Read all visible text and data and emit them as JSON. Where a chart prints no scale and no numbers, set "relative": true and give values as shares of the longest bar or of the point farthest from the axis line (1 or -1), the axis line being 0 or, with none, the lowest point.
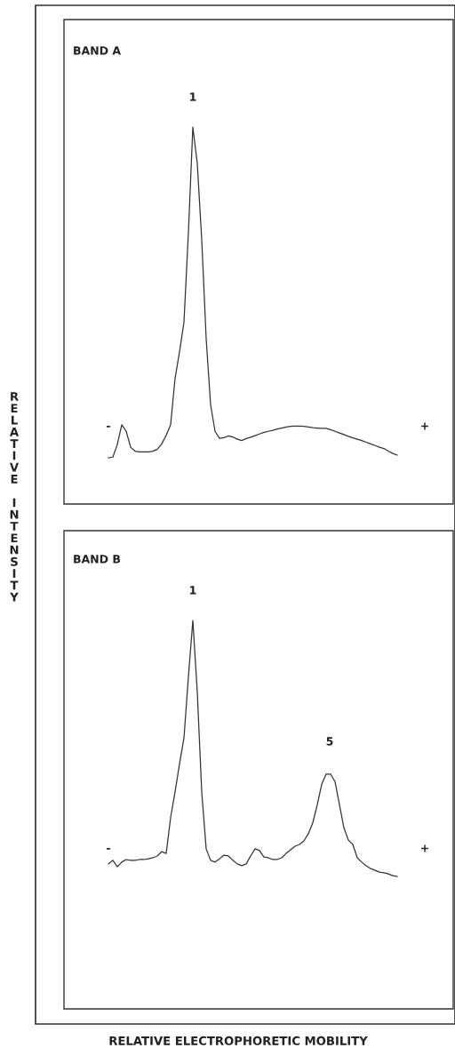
{
  "chart_data": [
    {
      "type": "line",
      "relative": true,
      "ylabel": "RELATIVE INTENSITY",
      "annotations": [
        "BAND A",
        "1",
        "-",
        "+"
      ],
      "categories": [
        null,
        null,
        null,
        null,
        null,
        null,
        null,
        null,
        null,
        null,
        null,
        null,
        null,
        null,
        null,
        null,
        null,
        null,
        null,
        null,
        null,
        null,
        null,
        null,
        null,
        null,
        null,
        null,
        null,
        null,
        null,
        null,
        null,
        null,
        null,
        null,
        null,
        null,
        null,
        null,
        null,
        null,
        null,
        null,
        null,
        null,
        null,
        null,
        null,
        null,
        null,
        null,
        null,
        null,
        null,
        null,
        null,
        null,
        null,
        null,
        null,
        null,
        null,
        null,
        null,
        null
      ],
      "series": [
        {
          "color": "#333333",
          "values": [
            0,
            0.002,
            0.04,
            0.1,
            0.08,
            0.032,
            0.02,
            0.018,
            0.018,
            0.018,
            0.02,
            0.026,
            0.042,
            0.068,
            0.1,
            0.24,
            0.32,
            0.41,
            0.68,
            1,
            0.89,
            0.66,
            0.36,
            0.16,
            0.08,
            0.059,
            0.061,
            0.066,
            0.063,
            0.056,
            0.052,
            0.058,
            0.062,
            0.067,
            0.072,
            0.077,
            0.08,
            0.083,
            0.087,
            0.09,
            0.093,
            0.095,
            0.096,
            0.096,
            0.095,
            0.093,
            0.091,
            0.09,
            0.089,
            0.089,
            0.085,
            0.08,
            0.075,
            0.07,
            0.065,
            0.06,
            0.056,
            0.052,
            0.047,
            0.042,
            0.037,
            0.032,
            0.028,
            0.02,
            0.013,
            0.008
          ]
        }
      ]
    },
    {
      "type": "line",
      "relative": true,
      "xlabel": "RELATIVE ELECTROPHORETIC MOBILITY",
      "annotations": [
        "BAND B",
        "1",
        "5",
        "-",
        "+"
      ],
      "categories": [
        null,
        null,
        null,
        null,
        null,
        null,
        null,
        null,
        null,
        null,
        null,
        null,
        null,
        null,
        null,
        null,
        null,
        null,
        null,
        null,
        null,
        null,
        null,
        null,
        null,
        null,
        null,
        null,
        null,
        null,
        null,
        null,
        null,
        null,
        null,
        null,
        null,
        null,
        null,
        null,
        null,
        null,
        null,
        null,
        null,
        null,
        null,
        null,
        null,
        null,
        null,
        null,
        null,
        null,
        null,
        null,
        null,
        null,
        null,
        null,
        null,
        null,
        null,
        null,
        null,
        null
      ],
      "series": [
        {
          "color": "#333333",
          "values": [
            0.049,
            0.063,
            0.038,
            0.056,
            0.066,
            0.063,
            0.063,
            0.066,
            0.066,
            0.069,
            0.073,
            0.08,
            0.097,
            0.09,
            0.23,
            0.33,
            0.44,
            0.54,
            0.78,
            1,
            0.72,
            0.33,
            0.108,
            0.063,
            0.056,
            0.069,
            0.083,
            0.08,
            0.063,
            0.049,
            0.042,
            0.049,
            0.08,
            0.108,
            0.101,
            0.076,
            0.073,
            0.066,
            0.066,
            0.073,
            0.09,
            0.104,
            0.118,
            0.125,
            0.139,
            0.167,
            0.21,
            0.28,
            0.36,
            0.4,
            0.4,
            0.37,
            0.28,
            0.19,
            0.142,
            0.125,
            0.073,
            0.056,
            0.042,
            0.031,
            0.024,
            0.017,
            0.014,
            0.01,
            0.003,
            0
          ]
        }
      ]
    }
  ]
}
